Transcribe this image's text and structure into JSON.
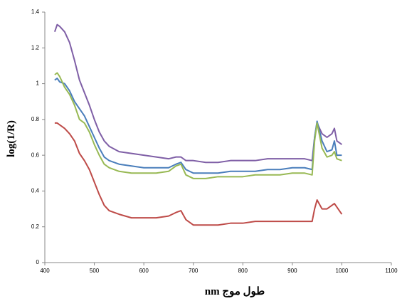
{
  "chart_data": {
    "type": "line",
    "ylabel": "log(1/R)",
    "xlabel": "nm طول موج",
    "xlim": [
      400,
      1100
    ],
    "xticks": [
      400,
      500,
      600,
      700,
      800,
      900,
      1000,
      1100
    ],
    "ylim": [
      0,
      1.4
    ],
    "yticks": [
      0,
      0.2,
      0.4,
      0.6,
      0.8,
      1,
      1.2,
      1.4
    ],
    "grid": false,
    "x": [
      420,
      425,
      430,
      440,
      450,
      460,
      470,
      480,
      490,
      500,
      510,
      520,
      530,
      550,
      575,
      600,
      625,
      650,
      665,
      675,
      685,
      700,
      725,
      750,
      775,
      800,
      825,
      850,
      875,
      900,
      925,
      940,
      945,
      950,
      960,
      970,
      980,
      985,
      990,
      1000
    ],
    "series": [
      {
        "color": "#7f5fa6",
        "values": [
          1.29,
          1.33,
          1.32,
          1.29,
          1.23,
          1.13,
          1.02,
          0.95,
          0.88,
          0.8,
          0.73,
          0.68,
          0.65,
          0.62,
          0.61,
          0.6,
          0.59,
          0.58,
          0.59,
          0.59,
          0.57,
          0.57,
          0.56,
          0.56,
          0.57,
          0.57,
          0.57,
          0.58,
          0.58,
          0.58,
          0.58,
          0.57,
          0.7,
          0.78,
          0.72,
          0.7,
          0.72,
          0.75,
          0.68,
          0.66
        ]
      },
      {
        "color": "#4a7ebb",
        "values": [
          1.02,
          1.03,
          1.01,
          1.0,
          0.96,
          0.9,
          0.86,
          0.82,
          0.76,
          0.7,
          0.64,
          0.59,
          0.57,
          0.55,
          0.54,
          0.53,
          0.53,
          0.53,
          0.55,
          0.56,
          0.52,
          0.5,
          0.5,
          0.5,
          0.51,
          0.51,
          0.51,
          0.52,
          0.52,
          0.53,
          0.53,
          0.52,
          0.7,
          0.79,
          0.68,
          0.62,
          0.63,
          0.68,
          0.6,
          0.6
        ]
      },
      {
        "color": "#98b954",
        "values": [
          1.05,
          1.06,
          1.04,
          0.98,
          0.94,
          0.88,
          0.8,
          0.78,
          0.73,
          0.66,
          0.6,
          0.55,
          0.53,
          0.51,
          0.5,
          0.5,
          0.5,
          0.51,
          0.54,
          0.55,
          0.49,
          0.47,
          0.47,
          0.48,
          0.48,
          0.48,
          0.49,
          0.49,
          0.49,
          0.5,
          0.5,
          0.49,
          0.68,
          0.78,
          0.64,
          0.59,
          0.6,
          0.62,
          0.58,
          0.57
        ]
      },
      {
        "color": "#be4b48",
        "values": [
          0.78,
          0.78,
          0.77,
          0.75,
          0.72,
          0.68,
          0.61,
          0.57,
          0.52,
          0.45,
          0.38,
          0.32,
          0.29,
          0.27,
          0.25,
          0.25,
          0.25,
          0.26,
          0.28,
          0.29,
          0.24,
          0.21,
          0.21,
          0.21,
          0.22,
          0.22,
          0.23,
          0.23,
          0.23,
          0.23,
          0.23,
          0.23,
          0.3,
          0.35,
          0.3,
          0.3,
          0.32,
          0.33,
          0.31,
          0.27
        ]
      }
    ]
  }
}
